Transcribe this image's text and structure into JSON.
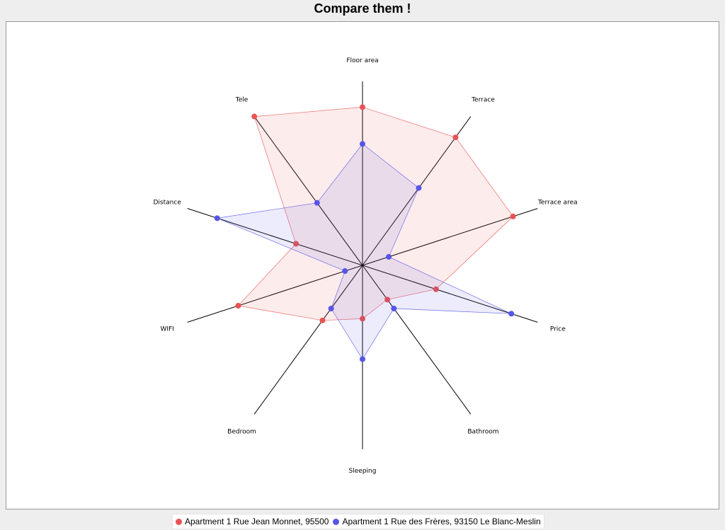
{
  "colors": {
    "series1": "#e95355",
    "series2": "#5555e8",
    "axis": "#000000"
  },
  "chart_data": {
    "type": "radar",
    "title": "Compare them !",
    "axes": [
      "Floor area",
      "Terrace",
      "Terrace area",
      "Price",
      "Bathroom",
      "Sleeping",
      "Bedroom",
      "WIFI",
      "Distance",
      "Tele"
    ],
    "rmax": 1,
    "legend_position": "bottom",
    "grid": false,
    "series": [
      {
        "name": "Apartment  1 Rue Jean Monnet, 95500",
        "values": [
          0.86,
          0.86,
          0.86,
          0.42,
          0.23,
          0.29,
          0.37,
          0.71,
          0.38,
          1.0
        ]
      },
      {
        "name": "Apartment  1 Rue des Frères, 93150 Le Blanc-Meslin",
        "values": [
          0.66,
          0.52,
          0.15,
          0.85,
          0.29,
          0.51,
          0.29,
          0.1,
          0.83,
          0.42
        ]
      }
    ]
  }
}
